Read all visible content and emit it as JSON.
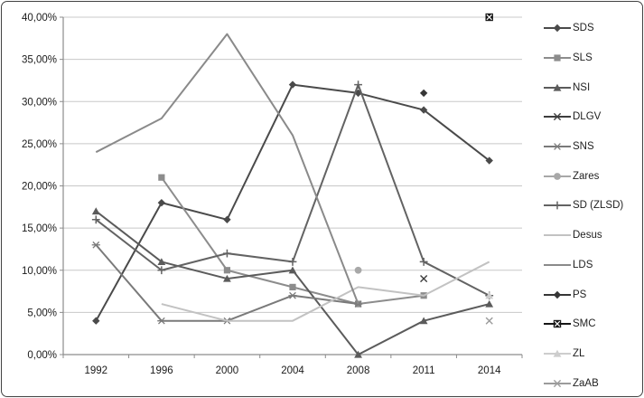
{
  "chart_data": {
    "type": "line",
    "title": "",
    "xlabel": "",
    "ylabel": "",
    "legend_position": "right",
    "grid": true,
    "categories": [
      "1992",
      "1996",
      "2000",
      "2004",
      "2008",
      "2011",
      "2014"
    ],
    "y_axis": {
      "min": 0,
      "max": 40,
      "step": 5,
      "tick_labels": [
        "0,00%",
        "5,00%",
        "10,00%",
        "15,00%",
        "20,00%",
        "25,00%",
        "30,00%",
        "35,00%",
        "40,00%"
      ]
    },
    "series": [
      {
        "name": "SDS",
        "marker": "diamond",
        "color": "#4a4a4a",
        "values": [
          4,
          18,
          16,
          32,
          31,
          29,
          23
        ]
      },
      {
        "name": "SLS",
        "marker": "square",
        "color": "#8c8c8c",
        "values": [
          null,
          21,
          10,
          8,
          6,
          7,
          null
        ]
      },
      {
        "name": "NSI",
        "marker": "triangle",
        "color": "#5b5b5b",
        "values": [
          17,
          11,
          9,
          10,
          0,
          4,
          6
        ]
      },
      {
        "name": "DLGV",
        "marker": "x",
        "color": "#3d3d3d",
        "values": [
          null,
          null,
          null,
          null,
          null,
          9,
          null
        ]
      },
      {
        "name": "SNS",
        "marker": "star",
        "color": "#7a7a7a",
        "values": [
          13,
          4,
          4,
          7,
          6,
          null,
          null
        ]
      },
      {
        "name": "Zares",
        "marker": "circle",
        "color": "#a8a8a8",
        "values": [
          null,
          null,
          null,
          null,
          10,
          null,
          null
        ]
      },
      {
        "name": "SD (ZLSD)",
        "marker": "plus",
        "color": "#636363",
        "values": [
          16,
          10,
          12,
          11,
          32,
          11,
          7
        ]
      },
      {
        "name": "Desus",
        "marker": "none",
        "color": "#c2c2c2",
        "values": [
          null,
          6,
          4,
          4,
          8,
          7,
          11
        ]
      },
      {
        "name": "LDS",
        "marker": "none",
        "color": "#8a8a8a",
        "values": [
          24,
          28,
          38,
          26,
          6,
          null,
          null
        ]
      },
      {
        "name": "PS",
        "marker": "diamond",
        "color": "#363636",
        "values": [
          null,
          null,
          null,
          null,
          null,
          31,
          null
        ]
      },
      {
        "name": "SMC",
        "marker": "square-x",
        "color": "#161616",
        "values": [
          null,
          null,
          null,
          null,
          null,
          null,
          40
        ]
      },
      {
        "name": "ZL",
        "marker": "triangle",
        "color": "#cdcdcd",
        "values": [
          null,
          null,
          null,
          null,
          null,
          null,
          7
        ]
      },
      {
        "name": "ZaAB",
        "marker": "x",
        "color": "#9b9b9b",
        "values": [
          null,
          null,
          null,
          null,
          null,
          null,
          4
        ]
      }
    ],
    "colors": {
      "gridline": "#c8c8c8",
      "axis": "#8c8c8c",
      "text": "#1a1a1a"
    }
  }
}
